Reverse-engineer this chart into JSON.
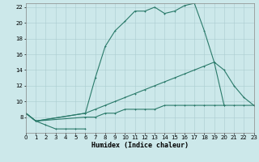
{
  "xlabel": "Humidex (Indice chaleur)",
  "x_all": [
    0,
    1,
    2,
    3,
    4,
    5,
    6,
    7,
    8,
    9,
    10,
    11,
    12,
    13,
    14,
    15,
    16,
    17,
    18,
    19,
    20,
    21,
    22,
    23
  ],
  "line_main_y": [
    8.5,
    7.5,
    null,
    null,
    null,
    null,
    8.5,
    13.0,
    17.0,
    19.0,
    20.2,
    21.5,
    21.5,
    22.0,
    21.2,
    21.5,
    22.2,
    22.5,
    19.0,
    15.0,
    14.0,
    12.0,
    10.5,
    9.5
  ],
  "line_med_y": [
    8.5,
    7.5,
    null,
    null,
    null,
    null,
    8.5,
    9.0,
    9.5,
    10.0,
    10.5,
    11.0,
    11.5,
    12.0,
    12.5,
    13.0,
    13.5,
    14.0,
    14.5,
    15.0,
    9.5,
    null,
    null,
    null
  ],
  "line_low_y": [
    8.5,
    7.5,
    null,
    null,
    null,
    null,
    8.0,
    8.0,
    8.5,
    8.5,
    9.0,
    9.0,
    9.0,
    9.0,
    9.5,
    9.5,
    9.5,
    9.5,
    9.5,
    9.5,
    9.5,
    9.5,
    9.5,
    9.5
  ],
  "line_bot_y": [
    8.5,
    7.5,
    7.0,
    6.5,
    6.5,
    6.5,
    6.5,
    null,
    null,
    null,
    null,
    null,
    null,
    null,
    null,
    null,
    null,
    null,
    null,
    null,
    null,
    null,
    null,
    null
  ],
  "line_color": "#2a7a6a",
  "bg_color": "#cce8ea",
  "grid_color": "#aacdd0",
  "xlim": [
    0,
    23
  ],
  "ylim": [
    6,
    22.5
  ],
  "yticks": [
    8,
    10,
    12,
    14,
    16,
    18,
    20,
    22
  ],
  "xticks": [
    0,
    1,
    2,
    3,
    4,
    5,
    6,
    7,
    8,
    9,
    10,
    11,
    12,
    13,
    14,
    15,
    16,
    17,
    18,
    19,
    20,
    21,
    22,
    23
  ],
  "xlabel_fontsize": 6,
  "tick_fontsize": 5
}
